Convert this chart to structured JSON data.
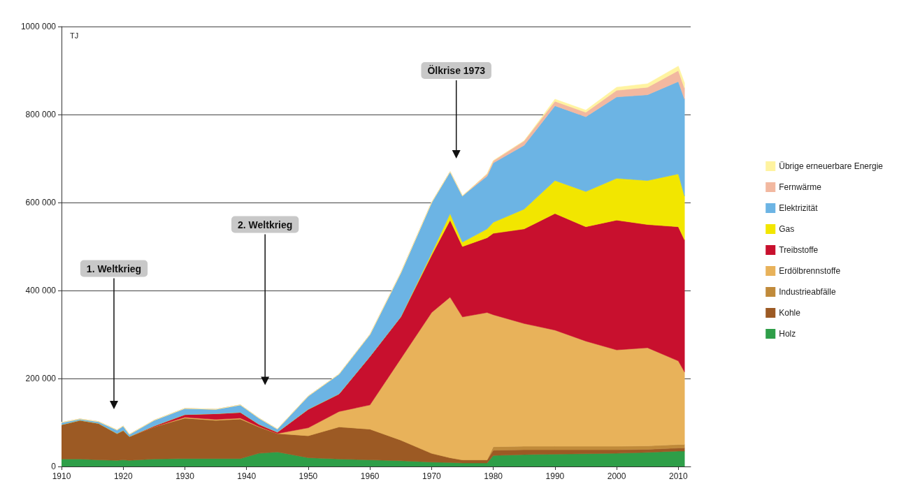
{
  "chart_data": {
    "type": "area",
    "stacked": true,
    "ylabel": "TJ",
    "x": [
      1910,
      1913,
      1916,
      1919,
      1920,
      1921,
      1925,
      1930,
      1935,
      1939,
      1942,
      1945,
      1950,
      1955,
      1960,
      1965,
      1970,
      1973,
      1975,
      1979,
      1980,
      1985,
      1990,
      1995,
      2000,
      2005,
      2010,
      2011
    ],
    "series": [
      {
        "name": "Holz",
        "color": "#2e9e48",
        "values": [
          17000,
          17000,
          15000,
          14000,
          15000,
          14000,
          17000,
          18000,
          18000,
          18000,
          30000,
          33000,
          20000,
          17000,
          15000,
          13000,
          10000,
          9000,
          8000,
          8000,
          25000,
          27000,
          28000,
          29000,
          30000,
          32000,
          35000,
          35000
        ]
      },
      {
        "name": "Kohle",
        "color": "#9c5a24",
        "values": [
          78000,
          88000,
          83000,
          61000,
          67000,
          54000,
          73000,
          92000,
          87000,
          90000,
          60000,
          42000,
          50000,
          73000,
          70000,
          47000,
          20000,
          11000,
          7000,
          7000,
          12000,
          11000,
          10000,
          9000,
          8000,
          7000,
          7000,
          7000
        ]
      },
      {
        "name": "Industrieabfälle",
        "color": "#c08a3a",
        "values": [
          0,
          0,
          0,
          0,
          0,
          0,
          0,
          0,
          0,
          0,
          0,
          0,
          0,
          0,
          0,
          0,
          0,
          0,
          0,
          0,
          8000,
          8000,
          8000,
          8000,
          8000,
          8000,
          8000,
          8000
        ]
      },
      {
        "name": "Erdölbrennstoffe",
        "color": "#e8b25a",
        "values": [
          0,
          0,
          0,
          0,
          0,
          0,
          0,
          2000,
          2000,
          2000,
          1000,
          0,
          18000,
          35000,
          55000,
          185000,
          320000,
          365000,
          325000,
          335000,
          300000,
          279000,
          264000,
          239000,
          219000,
          223000,
          190000,
          165000
        ]
      },
      {
        "name": "Treibstoffe",
        "color": "#c8102e",
        "values": [
          0,
          0,
          0,
          0,
          0,
          0,
          2000,
          6000,
          13000,
          13000,
          5000,
          3000,
          42000,
          40000,
          110000,
          95000,
          130000,
          175000,
          160000,
          170000,
          185000,
          215000,
          265000,
          260000,
          295000,
          280000,
          305000,
          300000
        ]
      },
      {
        "name": "Gas",
        "color": "#f2e600",
        "values": [
          0,
          0,
          0,
          0,
          0,
          0,
          0,
          0,
          0,
          0,
          0,
          0,
          0,
          0,
          0,
          0,
          5000,
          15000,
          10000,
          20000,
          25000,
          45000,
          75000,
          80000,
          95000,
          100000,
          120000,
          100000
        ]
      },
      {
        "name": "Elektrizität",
        "color": "#6cb4e4",
        "values": [
          5000,
          3000,
          4000,
          8000,
          10000,
          5000,
          13000,
          14000,
          10000,
          17000,
          14000,
          7000,
          30000,
          45000,
          50000,
          100000,
          115000,
          95000,
          105000,
          120000,
          135000,
          145000,
          170000,
          170000,
          185000,
          195000,
          210000,
          220000
        ]
      },
      {
        "name": "Fernwärme",
        "color": "#f2b8a0",
        "values": [
          0,
          0,
          0,
          0,
          0,
          0,
          0,
          0,
          0,
          0,
          0,
          0,
          0,
          0,
          0,
          0,
          0,
          0,
          0,
          5000,
          5000,
          10000,
          10000,
          10000,
          15000,
          17000,
          25000,
          25000
        ]
      },
      {
        "name": "Übrige erneuerbare Energie",
        "color": "#fff3a0",
        "values": [
          0,
          0,
          0,
          0,
          0,
          0,
          0,
          0,
          0,
          0,
          0,
          0,
          0,
          0,
          0,
          0,
          0,
          0,
          0,
          0,
          0,
          0,
          5000,
          5000,
          7000,
          8000,
          10000,
          12000
        ]
      }
    ],
    "xlim": [
      1910,
      2012
    ],
    "xticks": [
      1910,
      1920,
      1930,
      1940,
      1950,
      1960,
      1970,
      1980,
      1990,
      2000,
      2010
    ],
    "ylim": [
      0,
      1000000
    ],
    "yticks": [
      0,
      {
        "value": 200000,
        "label": "200 000"
      },
      {
        "value": 400000,
        "label": "400 000"
      },
      {
        "value": 600000,
        "label": "600 000"
      },
      {
        "value": 800000,
        "label": "800 000"
      },
      {
        "value": 1000000,
        "label": "1000 000"
      }
    ],
    "grid": "y",
    "legend": "right",
    "annotations": [
      "1. Weltkrieg",
      "2. Weltkrieg",
      "Ölkrise 1973"
    ]
  }
}
